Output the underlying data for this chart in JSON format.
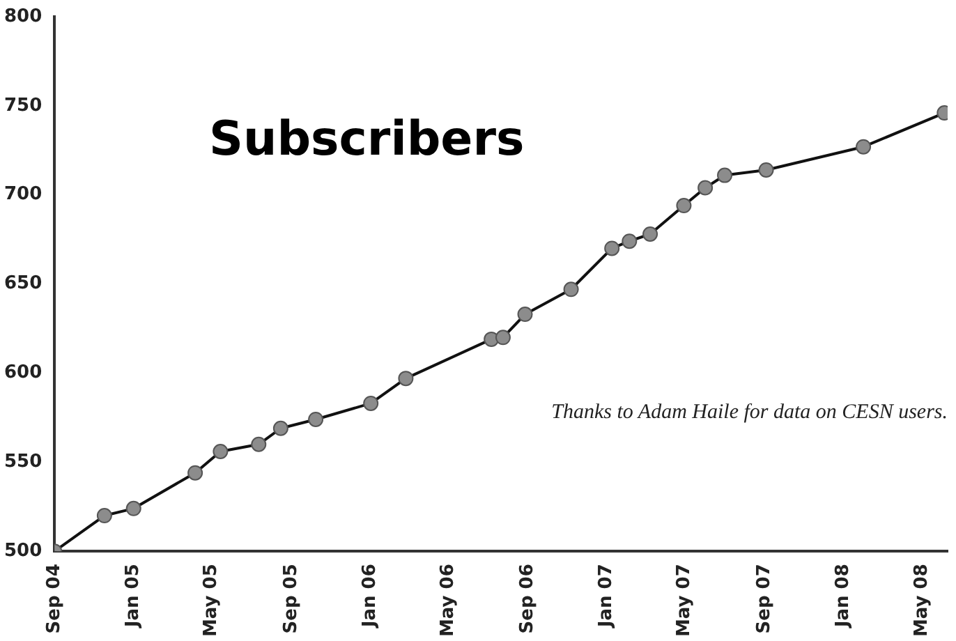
{
  "chart_data": {
    "type": "line",
    "title": "Subscribers",
    "annotations": [
      "Thanks to Adam Haile for data on CESN users."
    ],
    "x": [
      "2004-09-01",
      "2004-11-17",
      "2005-01-01",
      "2005-04-06",
      "2005-05-15",
      "2005-07-13",
      "2005-08-16",
      "2005-10-09",
      "2006-01-02",
      "2006-02-25",
      "2006-07-07",
      "2006-07-25",
      "2006-08-28",
      "2006-11-07",
      "2007-01-09",
      "2007-02-05",
      "2007-03-09",
      "2007-04-30",
      "2007-06-02",
      "2007-07-02",
      "2007-09-04",
      "2008-02-01",
      "2008-06-05"
    ],
    "series": [
      {
        "color": "#8c8c8c",
        "values": [
          500,
          520,
          524,
          544,
          556,
          560,
          569,
          574,
          583,
          597,
          619,
          620,
          633,
          647,
          670,
          674,
          678,
          694,
          704,
          711,
          714,
          727,
          746
        ]
      }
    ],
    "xlim": [
      "2004-09-01",
      "2008-06-10"
    ],
    "xticks": [
      {
        "value": "2004-09-01",
        "label": "Sep 04"
      },
      {
        "value": "2005-01-01",
        "label": "Jan 05"
      },
      {
        "value": "2005-05-01",
        "label": "May 05"
      },
      {
        "value": "2005-09-01",
        "label": "Sep 05"
      },
      {
        "value": "2006-01-01",
        "label": "Jan 06"
      },
      {
        "value": "2006-05-01",
        "label": "May 06"
      },
      {
        "value": "2006-09-01",
        "label": "Sep 06"
      },
      {
        "value": "2007-01-01",
        "label": "Jan 07"
      },
      {
        "value": "2007-05-01",
        "label": "May 07"
      },
      {
        "value": "2007-09-01",
        "label": "Sep 07"
      },
      {
        "value": "2008-01-01",
        "label": "Jan 08"
      },
      {
        "value": "2008-05-01",
        "label": "May 08"
      }
    ],
    "ylim": [
      500,
      800
    ],
    "yticks": [
      500,
      550,
      600,
      650,
      700,
      750,
      800
    ],
    "grid": false,
    "legend": false,
    "marker": "circle",
    "line_style": "solid"
  }
}
